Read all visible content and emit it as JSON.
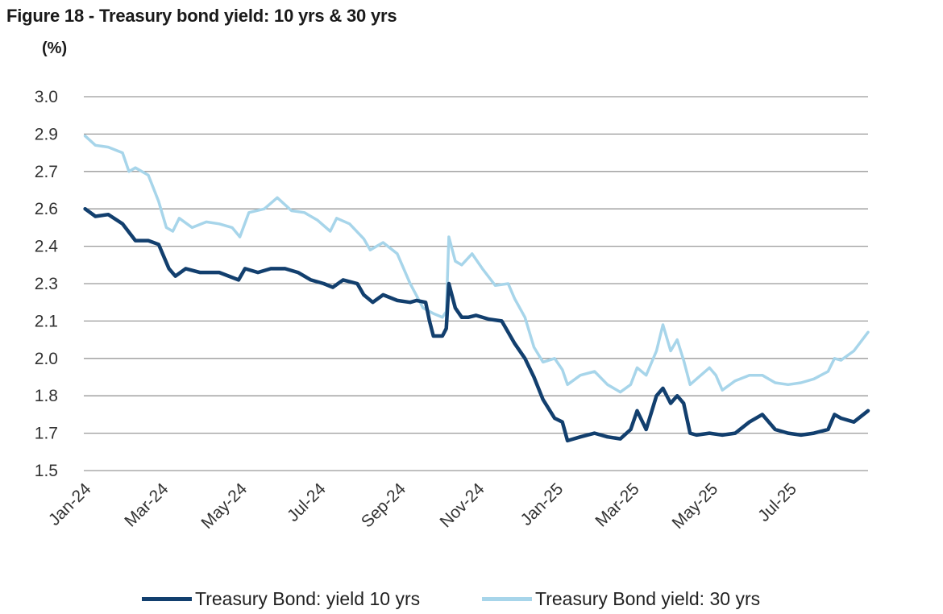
{
  "figure": {
    "title": "Figure 18 - Treasury bond yield: 10 yrs & 30 yrs",
    "unit": "(%)"
  },
  "colors": {
    "series_10y": "#123f6e",
    "series_30y": "#a7d5ea",
    "grid": "#9a9a9a",
    "axis": "#9a9a9a",
    "text": "#1a1a1a"
  },
  "chart_data": {
    "type": "line",
    "title": "Figure 18 - Treasury bond yield: 10 yrs & 30 yrs",
    "ylabel": "(%)",
    "ylim": [
      1.5,
      3.0
    ],
    "y_ticks": [
      3.0,
      2.9,
      2.7,
      2.6,
      2.4,
      2.3,
      2.1,
      2.0,
      1.8,
      1.7,
      1.5
    ],
    "y_tick_labels": [
      "3.0",
      "2.9",
      "2.7",
      "2.6",
      "2.4",
      "2.3",
      "2.1",
      "2.0",
      "1.8",
      "1.7",
      "1.5"
    ],
    "x_tick_labels": [
      "Jan-24",
      "Mar-24",
      "May-24",
      "Jul-24",
      "Sep-24",
      "Nov-24",
      "Jan-25",
      "Mar-25",
      "May-25",
      "Jul-25"
    ],
    "x_range": [
      "2024-01-01",
      "2025-08-31"
    ],
    "grid": true,
    "legend_position": "bottom",
    "series": [
      {
        "name": "Treasury Bond: yield 10 yrs",
        "points": [
          [
            "2024-01-02",
            2.6
          ],
          [
            "2024-01-10",
            2.56
          ],
          [
            "2024-01-20",
            2.57
          ],
          [
            "2024-01-31",
            2.52
          ],
          [
            "2024-02-10",
            2.43
          ],
          [
            "2024-02-20",
            2.43
          ],
          [
            "2024-02-28",
            2.41
          ],
          [
            "2024-03-07",
            2.34
          ],
          [
            "2024-03-12",
            2.32
          ],
          [
            "2024-03-20",
            2.34
          ],
          [
            "2024-03-31",
            2.33
          ],
          [
            "2024-04-15",
            2.33
          ],
          [
            "2024-04-30",
            2.31
          ],
          [
            "2024-05-05",
            2.34
          ],
          [
            "2024-05-15",
            2.33
          ],
          [
            "2024-05-25",
            2.34
          ],
          [
            "2024-06-05",
            2.34
          ],
          [
            "2024-06-15",
            2.33
          ],
          [
            "2024-06-25",
            2.31
          ],
          [
            "2024-07-05",
            2.3
          ],
          [
            "2024-07-12",
            2.28
          ],
          [
            "2024-07-20",
            2.31
          ],
          [
            "2024-07-31",
            2.3
          ],
          [
            "2024-08-05",
            2.24
          ],
          [
            "2024-08-12",
            2.2
          ],
          [
            "2024-08-20",
            2.24
          ],
          [
            "2024-08-31",
            2.21
          ],
          [
            "2024-09-10",
            2.2
          ],
          [
            "2024-09-15",
            2.21
          ],
          [
            "2024-09-22",
            2.2
          ],
          [
            "2024-09-25",
            2.1
          ],
          [
            "2024-09-28",
            2.06
          ],
          [
            "2024-10-05",
            2.06
          ],
          [
            "2024-10-08",
            2.08
          ],
          [
            "2024-10-10",
            2.3
          ],
          [
            "2024-10-15",
            2.17
          ],
          [
            "2024-10-20",
            2.12
          ],
          [
            "2024-10-25",
            2.12
          ],
          [
            "2024-10-31",
            2.13
          ],
          [
            "2024-11-10",
            2.11
          ],
          [
            "2024-11-20",
            2.1
          ],
          [
            "2024-11-30",
            2.04
          ],
          [
            "2024-12-08",
            2.0
          ],
          [
            "2024-12-15",
            1.9
          ],
          [
            "2024-12-22",
            1.79
          ],
          [
            "2024-12-31",
            1.74
          ],
          [
            "2025-01-06",
            1.73
          ],
          [
            "2025-01-10",
            1.66
          ],
          [
            "2025-01-20",
            1.68
          ],
          [
            "2025-01-31",
            1.7
          ],
          [
            "2025-02-10",
            1.68
          ],
          [
            "2025-02-20",
            1.67
          ],
          [
            "2025-02-28",
            1.71
          ],
          [
            "2025-03-05",
            1.76
          ],
          [
            "2025-03-12",
            1.71
          ],
          [
            "2025-03-20",
            1.8
          ],
          [
            "2025-03-25",
            1.84
          ],
          [
            "2025-03-31",
            1.78
          ],
          [
            "2025-04-05",
            1.8
          ],
          [
            "2025-04-10",
            1.78
          ],
          [
            "2025-04-15",
            1.7
          ],
          [
            "2025-04-20",
            1.69
          ],
          [
            "2025-04-30",
            1.7
          ],
          [
            "2025-05-10",
            1.69
          ],
          [
            "2025-05-20",
            1.7
          ],
          [
            "2025-05-31",
            1.73
          ],
          [
            "2025-06-10",
            1.75
          ],
          [
            "2025-06-20",
            1.71
          ],
          [
            "2025-06-30",
            1.7
          ],
          [
            "2025-07-10",
            1.69
          ],
          [
            "2025-07-20",
            1.7
          ],
          [
            "2025-07-31",
            1.71
          ],
          [
            "2025-08-05",
            1.75
          ],
          [
            "2025-08-10",
            1.74
          ],
          [
            "2025-08-20",
            1.73
          ],
          [
            "2025-08-31",
            1.76
          ]
        ]
      },
      {
        "name": "Treasury Bond yield: 30 yrs",
        "points": [
          [
            "2024-01-02",
            2.89
          ],
          [
            "2024-01-10",
            2.84
          ],
          [
            "2024-01-20",
            2.83
          ],
          [
            "2024-01-31",
            2.8
          ],
          [
            "2024-02-05",
            2.7
          ],
          [
            "2024-02-10",
            2.72
          ],
          [
            "2024-02-20",
            2.69
          ],
          [
            "2024-02-28",
            2.62
          ],
          [
            "2024-03-05",
            2.5
          ],
          [
            "2024-03-10",
            2.48
          ],
          [
            "2024-03-15",
            2.55
          ],
          [
            "2024-03-25",
            2.5
          ],
          [
            "2024-04-05",
            2.53
          ],
          [
            "2024-04-15",
            2.52
          ],
          [
            "2024-04-25",
            2.5
          ],
          [
            "2024-05-01",
            2.45
          ],
          [
            "2024-05-08",
            2.58
          ],
          [
            "2024-05-20",
            2.6
          ],
          [
            "2024-05-30",
            2.63
          ],
          [
            "2024-06-10",
            2.59
          ],
          [
            "2024-06-20",
            2.58
          ],
          [
            "2024-06-30",
            2.54
          ],
          [
            "2024-07-10",
            2.48
          ],
          [
            "2024-07-15",
            2.55
          ],
          [
            "2024-07-25",
            2.52
          ],
          [
            "2024-08-05",
            2.44
          ],
          [
            "2024-08-10",
            2.39
          ],
          [
            "2024-08-20",
            2.42
          ],
          [
            "2024-08-31",
            2.38
          ],
          [
            "2024-09-10",
            2.3
          ],
          [
            "2024-09-20",
            2.17
          ],
          [
            "2024-09-28",
            2.14
          ],
          [
            "2024-10-05",
            2.12
          ],
          [
            "2024-10-08",
            2.15
          ],
          [
            "2024-10-10",
            2.45
          ],
          [
            "2024-10-15",
            2.36
          ],
          [
            "2024-10-20",
            2.35
          ],
          [
            "2024-10-28",
            2.38
          ],
          [
            "2024-11-05",
            2.34
          ],
          [
            "2024-11-15",
            2.29
          ],
          [
            "2024-11-25",
            2.3
          ],
          [
            "2024-11-30",
            2.22
          ],
          [
            "2024-12-08",
            2.12
          ],
          [
            "2024-12-15",
            2.03
          ],
          [
            "2024-12-22",
            1.98
          ],
          [
            "2024-12-31",
            2.0
          ],
          [
            "2025-01-06",
            1.94
          ],
          [
            "2025-01-10",
            1.86
          ],
          [
            "2025-01-20",
            1.91
          ],
          [
            "2025-01-31",
            1.93
          ],
          [
            "2025-02-10",
            1.86
          ],
          [
            "2025-02-20",
            1.82
          ],
          [
            "2025-02-28",
            1.86
          ],
          [
            "2025-03-05",
            1.95
          ],
          [
            "2025-03-12",
            1.91
          ],
          [
            "2025-03-20",
            2.02
          ],
          [
            "2025-03-25",
            2.09
          ],
          [
            "2025-03-31",
            2.02
          ],
          [
            "2025-04-05",
            2.05
          ],
          [
            "2025-04-10",
            1.99
          ],
          [
            "2025-04-15",
            1.86
          ],
          [
            "2025-04-20",
            1.89
          ],
          [
            "2025-04-30",
            1.95
          ],
          [
            "2025-05-05",
            1.91
          ],
          [
            "2025-05-10",
            1.83
          ],
          [
            "2025-05-20",
            1.88
          ],
          [
            "2025-05-31",
            1.91
          ],
          [
            "2025-06-10",
            1.91
          ],
          [
            "2025-06-20",
            1.87
          ],
          [
            "2025-06-30",
            1.86
          ],
          [
            "2025-07-10",
            1.87
          ],
          [
            "2025-07-20",
            1.89
          ],
          [
            "2025-07-31",
            1.93
          ],
          [
            "2025-08-05",
            2.0
          ],
          [
            "2025-08-10",
            1.99
          ],
          [
            "2025-08-20",
            2.02
          ],
          [
            "2025-08-31",
            2.07
          ]
        ]
      }
    ]
  },
  "legend": {
    "item_10y": "Treasury Bond: yield 10 yrs",
    "item_30y": "Treasury Bond yield: 30 yrs"
  }
}
